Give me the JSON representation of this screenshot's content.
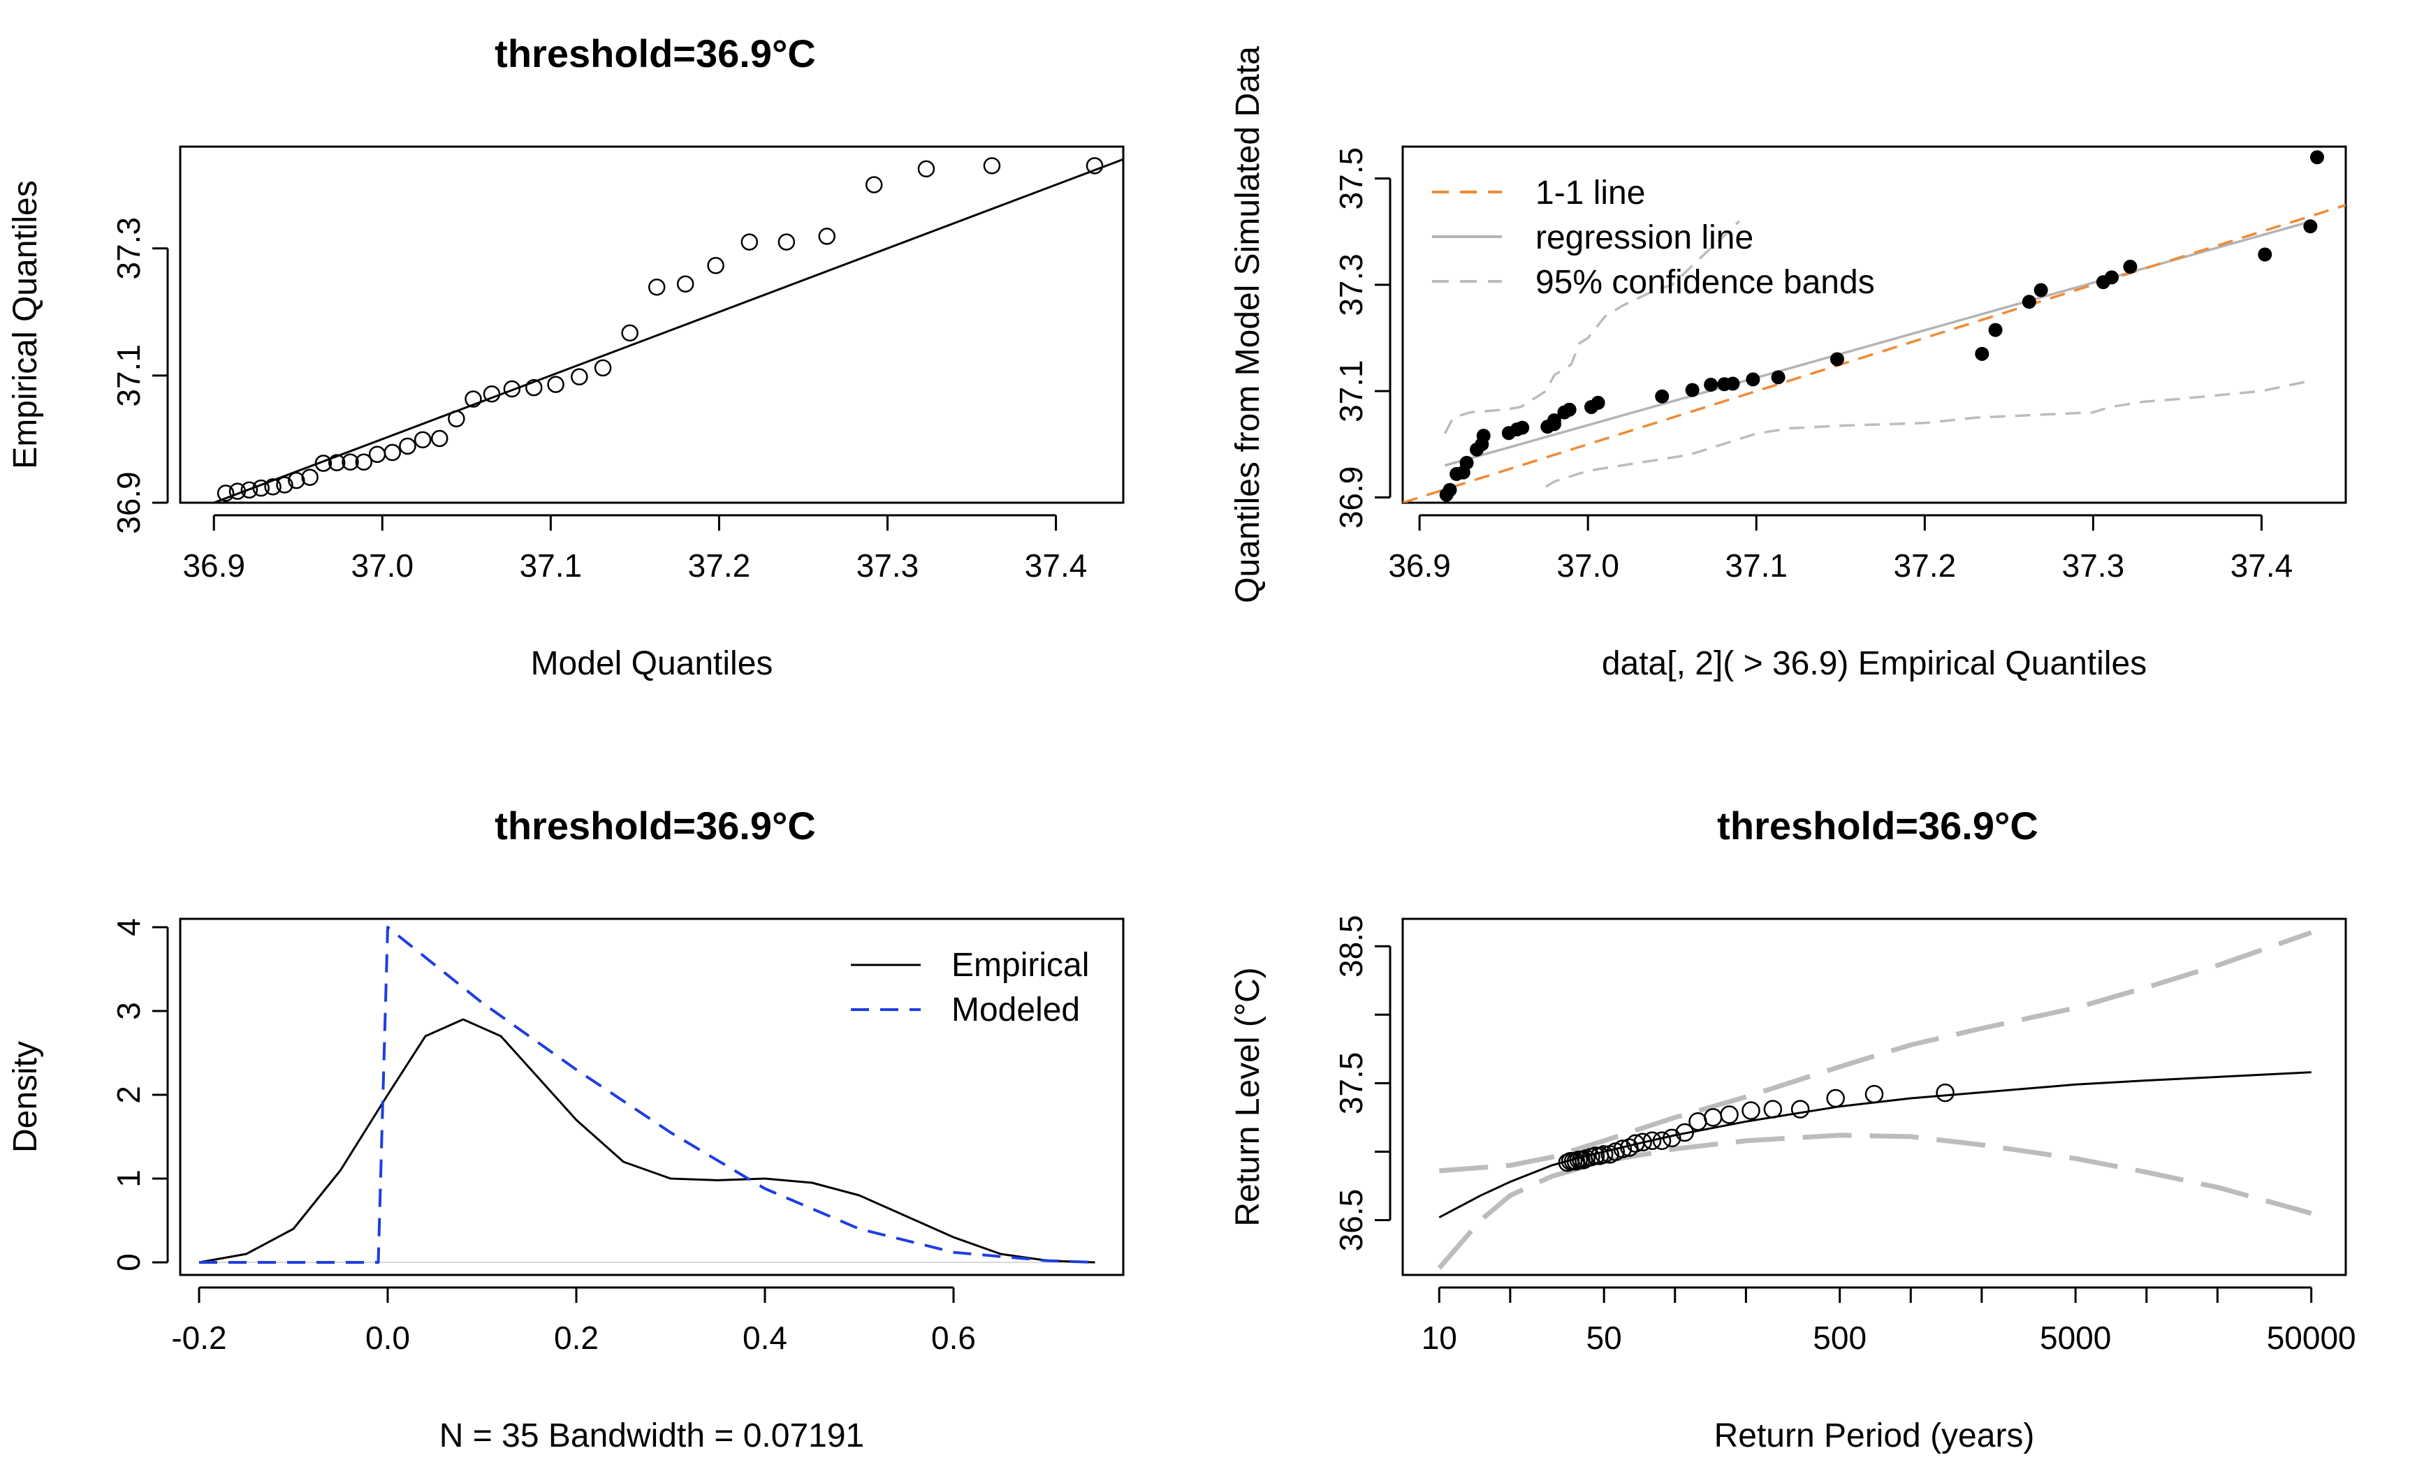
{
  "chart_data": [
    {
      "type": "scatter",
      "panel": "top-left",
      "title": "threshold=36.9°C",
      "xlabel": "Model Quantiles",
      "ylabel": "Empirical Quantiles",
      "xlim": [
        36.88,
        37.44
      ],
      "ylim": [
        36.9,
        37.46
      ],
      "xticks": [
        "36.9",
        "37.0",
        "37.1",
        "37.2",
        "37.3",
        "37.4"
      ],
      "yticks": [
        "36.9",
        "37.1",
        "37.3"
      ],
      "points": {
        "x": [
          36.907,
          36.914,
          36.921,
          36.928,
          36.935,
          36.942,
          36.949,
          36.957,
          36.965,
          36.973,
          36.981,
          36.989,
          36.997,
          37.006,
          37.015,
          37.024,
          37.034,
          37.044,
          37.054,
          37.065,
          37.077,
          37.09,
          37.103,
          37.117,
          37.131,
          37.147,
          37.163,
          37.18,
          37.198,
          37.218,
          37.24,
          37.264,
          37.292,
          37.323,
          37.362,
          37.423
        ],
        "y": [
          36.915,
          36.918,
          36.92,
          36.923,
          36.925,
          36.928,
          36.935,
          36.94,
          36.962,
          36.963,
          36.964,
          36.964,
          36.976,
          36.979,
          36.989,
          36.999,
          37.001,
          37.032,
          37.063,
          37.071,
          37.079,
          37.081,
          37.086,
          37.098,
          37.112,
          37.167,
          37.239,
          37.244,
          37.273,
          37.31,
          37.31,
          37.319,
          37.4,
          37.425,
          37.43,
          37.43
        ]
      },
      "reference_line": {
        "x": [
          36.89,
          37.44
        ],
        "y": [
          36.89,
          37.44
        ]
      }
    },
    {
      "type": "scatter",
      "panel": "top-right",
      "title": "",
      "xlabel": "data[, 2]( > 36.9) Empirical Quantiles",
      "ylabel": "Quantiles from Model Simulated Data",
      "xlim": [
        36.89,
        37.45
      ],
      "ylim": [
        36.89,
        37.56
      ],
      "xticks": [
        "36.9",
        "37.0",
        "37.1",
        "37.2",
        "37.3",
        "37.4"
      ],
      "yticks": [
        "36.9",
        "37.1",
        "37.3",
        "37.5"
      ],
      "legend": [
        "1-1 line",
        "regression line",
        "95% confidence bands"
      ],
      "colors": {
        "one_to_one": "#f08a35",
        "regression": "#b4b4b4",
        "bands": "#bcbcbc"
      },
      "points": {
        "x": [
          36.916,
          36.918,
          36.922,
          36.926,
          36.928,
          36.934,
          36.937,
          36.938,
          36.953,
          36.958,
          36.961,
          36.976,
          36.98,
          36.98,
          36.986,
          36.989,
          37.002,
          37.006,
          37.044,
          37.062,
          37.073,
          37.081,
          37.086,
          37.098,
          37.113,
          37.148,
          37.234,
          37.242,
          37.262,
          37.269,
          37.306,
          37.311,
          37.322,
          37.402,
          37.429,
          37.433
        ],
        "y": [
          36.905,
          36.914,
          36.944,
          36.947,
          36.965,
          36.99,
          37.0,
          37.016,
          37.021,
          37.028,
          37.031,
          37.033,
          37.038,
          37.045,
          37.06,
          37.065,
          37.07,
          37.078,
          37.09,
          37.102,
          37.112,
          37.113,
          37.114,
          37.122,
          37.126,
          37.16,
          37.17,
          37.215,
          37.268,
          37.29,
          37.305,
          37.314,
          37.334,
          37.357,
          37.41,
          37.54
        ]
      },
      "regression_line": {
        "x": [
          36.915,
          37.43
        ],
        "y": [
          36.96,
          37.42
        ]
      },
      "confidence_bands": {
        "upper": {
          "x": [
            36.915,
            36.92,
            36.93,
            36.95,
            36.96,
            36.97,
            36.975,
            36.98,
            36.99,
            36.995,
            37.0,
            37.01,
            37.02,
            37.04,
            37.05,
            37.06,
            37.07,
            37.08,
            37.09
          ],
          "y": [
            37.02,
            37.05,
            37.06,
            37.065,
            37.07,
            37.09,
            37.1,
            37.13,
            37.15,
            37.19,
            37.2,
            37.24,
            37.26,
            37.29,
            37.3,
            37.33,
            37.36,
            37.39,
            37.42
          ]
        },
        "lower": {
          "x": [
            36.975,
            36.98,
            36.99,
            37.0,
            37.02,
            37.04,
            37.06,
            37.07,
            37.08,
            37.1,
            37.12,
            37.15,
            37.2,
            37.23,
            37.3,
            37.31,
            37.33,
            37.35,
            37.4,
            37.43
          ],
          "y": [
            36.92,
            36.93,
            36.94,
            36.95,
            36.96,
            36.97,
            36.98,
            36.99,
            37.0,
            37.02,
            37.03,
            37.035,
            37.04,
            37.05,
            37.06,
            37.07,
            37.08,
            37.085,
            37.1,
            37.12
          ]
        }
      }
    },
    {
      "type": "line",
      "panel": "bottom-left",
      "title": "threshold=36.9°C",
      "xlabel": "N = 35   Bandwidth = 0.07191",
      "ylabel": "Density",
      "xlim": [
        -0.22,
        0.78
      ],
      "ylim": [
        -0.15,
        4.1
      ],
      "xticks": [
        "-0.2",
        "0.0",
        "0.2",
        "0.4",
        "0.6"
      ],
      "yticks": [
        "0",
        "1",
        "2",
        "3",
        "4"
      ],
      "legend": [
        "Empirical",
        "Modeled"
      ],
      "colors": {
        "empirical": "#000000",
        "modeled": "#1f3ee0"
      },
      "series": [
        {
          "name": "Empirical",
          "x": [
            -0.2,
            -0.15,
            -0.1,
            -0.05,
            0.0,
            0.04,
            0.08,
            0.12,
            0.16,
            0.2,
            0.25,
            0.3,
            0.35,
            0.4,
            0.45,
            0.5,
            0.55,
            0.6,
            0.65,
            0.7,
            0.75
          ],
          "y": [
            0.0,
            0.1,
            0.4,
            1.1,
            2.0,
            2.7,
            2.9,
            2.7,
            2.2,
            1.7,
            1.2,
            1.0,
            0.98,
            1.0,
            0.95,
            0.8,
            0.55,
            0.3,
            0.1,
            0.02,
            0.0
          ]
        },
        {
          "name": "Modeled",
          "x": [
            -0.2,
            -0.01,
            -0.01,
            0.0,
            0.1,
            0.2,
            0.3,
            0.4,
            0.5,
            0.6,
            0.7,
            0.75
          ],
          "y": [
            0.0,
            0.0,
            0.0,
            4.0,
            3.1,
            2.3,
            1.55,
            0.88,
            0.4,
            0.12,
            0.02,
            0.0
          ]
        }
      ]
    },
    {
      "type": "line",
      "panel": "bottom-right",
      "title": "threshold=36.9°C",
      "xlabel": "Return Period (years)",
      "ylabel": "Return Level (°C)",
      "xscale": "log",
      "xlim": [
        7,
        70000
      ],
      "ylim": [
        36.1,
        38.7
      ],
      "xticks": [
        "10",
        "50",
        "500",
        "5000",
        "50000"
      ],
      "xtick_values": [
        10,
        50,
        500,
        5000,
        50000
      ],
      "xminor_ticks": [
        20,
        100,
        200,
        1000,
        2000,
        10000,
        20000
      ],
      "yticks": [
        "36.5",
        "37.5",
        "38.5"
      ],
      "ytick_values": [
        36.5,
        37.5,
        38.5
      ],
      "yminor_ticks": [
        37.0,
        38.0
      ],
      "colors": {
        "fit": "#000000",
        "ci": "#bcbcbc"
      },
      "series": [
        {
          "name": "Return level",
          "x": [
            10,
            15,
            20,
            30,
            40,
            50,
            70,
            100,
            200,
            500,
            1000,
            5000,
            10000,
            50000
          ],
          "y": [
            36.52,
            36.68,
            36.78,
            36.9,
            36.96,
            37.0,
            37.06,
            37.12,
            37.22,
            37.33,
            37.39,
            37.49,
            37.52,
            37.58
          ]
        },
        {
          "name": "Upper CI",
          "x": [
            10,
            20,
            30,
            50,
            100,
            200,
            500,
            1000,
            2000,
            5000,
            10000,
            20000,
            50000
          ],
          "y": [
            36.86,
            36.9,
            36.96,
            37.08,
            37.25,
            37.4,
            37.62,
            37.78,
            37.9,
            38.05,
            38.2,
            38.36,
            38.6
          ]
        },
        {
          "name": "Lower CI",
          "x": [
            10,
            15,
            20,
            30,
            50,
            100,
            200,
            500,
            1000,
            2000,
            5000,
            10000,
            20000,
            50000
          ],
          "y": [
            36.15,
            36.5,
            36.68,
            36.82,
            36.93,
            37.02,
            37.08,
            37.12,
            37.11,
            37.05,
            36.95,
            36.85,
            36.74,
            36.55
          ]
        }
      ],
      "points": {
        "x": [
          35,
          36,
          37,
          38,
          39,
          40,
          41,
          42,
          44,
          46,
          48,
          50,
          53,
          56,
          60,
          64,
          68,
          73,
          80,
          88,
          97,
          110,
          125,
          145,
          170,
          210,
          260,
          340,
          480,
          700,
          1400
        ],
        "y": [
          36.92,
          36.93,
          36.93,
          36.93,
          36.94,
          36.94,
          36.94,
          36.95,
          36.96,
          36.97,
          36.97,
          36.98,
          36.98,
          37.0,
          37.02,
          37.03,
          37.06,
          37.07,
          37.08,
          37.08,
          37.1,
          37.14,
          37.22,
          37.25,
          37.27,
          37.3,
          37.31,
          37.31,
          37.39,
          37.42,
          37.43
        ]
      }
    }
  ]
}
